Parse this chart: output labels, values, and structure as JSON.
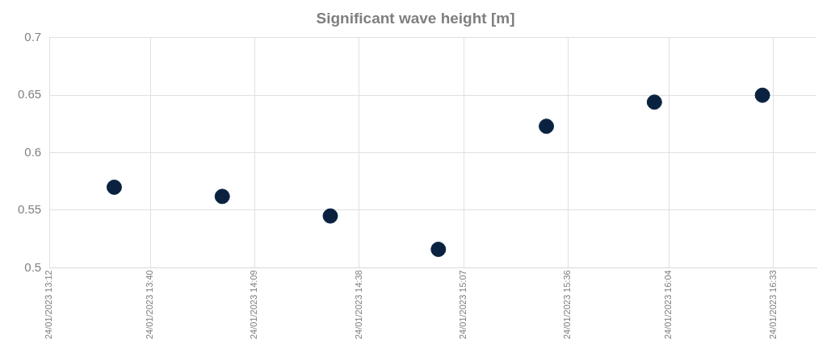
{
  "chart_data": {
    "type": "scatter",
    "title": "Significant wave height [m]",
    "x": [
      "2023-01-24T13:30",
      "2023-01-24T14:00",
      "2023-01-24T14:30",
      "2023-01-24T15:00",
      "2023-01-24T15:30",
      "2023-01-24T16:00",
      "2023-01-24T16:30"
    ],
    "series": [
      {
        "color": "#0a2240",
        "values": [
          0.57,
          0.562,
          0.545,
          0.516,
          0.623,
          0.644,
          0.65
        ]
      }
    ],
    "xlim": [
      "2023-01-24T13:12",
      "2023-01-24T16:45"
    ],
    "xticks": [
      {
        "value": "2023-01-24T13:12",
        "label": "24/01/2023 13:12"
      },
      {
        "value": "2023-01-24T13:40",
        "label": "24/01/2023 13:40"
      },
      {
        "value": "2023-01-24T14:09",
        "label": "24/01/2023 14:09"
      },
      {
        "value": "2023-01-24T14:38",
        "label": "24/01/2023 14:38"
      },
      {
        "value": "2023-01-24T15:07",
        "label": "24/01/2023 15:07"
      },
      {
        "value": "2023-01-24T15:36",
        "label": "24/01/2023 15:36"
      },
      {
        "value": "2023-01-24T16:04",
        "label": "24/01/2023 16:04"
      },
      {
        "value": "2023-01-24T16:33",
        "label": "24/01/2023 16:33"
      }
    ],
    "ylim": [
      0.5,
      0.7
    ],
    "yticks": [
      0.5,
      0.55,
      0.6,
      0.65,
      0.7
    ],
    "grid": true,
    "marker": "circle",
    "legend": false
  }
}
